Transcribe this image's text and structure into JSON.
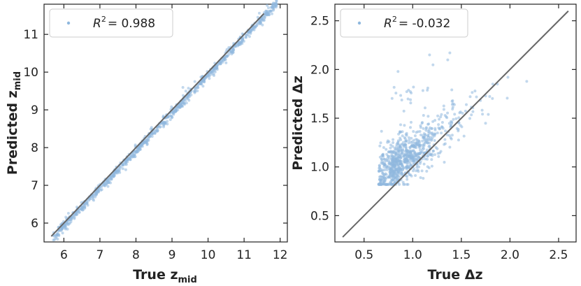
{
  "chart_data": [
    {
      "type": "scatter",
      "xlabel": {
        "main": "True z",
        "sub": "mid"
      },
      "ylabel": {
        "main": "Predicted z",
        "sub": "mid"
      },
      "xlim": [
        5.45,
        12.2
      ],
      "ylim": [
        5.5,
        11.8
      ],
      "xticks": [
        "6",
        "7",
        "8",
        "9",
        "10",
        "11",
        "12"
      ],
      "yticks": [
        "6",
        "7",
        "8",
        "9",
        "10",
        "11"
      ],
      "legend": {
        "r2_label": "R",
        "r2_sup": "2",
        "r2_value": "= 0.988",
        "placement": "top-left"
      },
      "reference_line": {
        "x": [
          5.65,
          11.55
        ],
        "y": [
          5.65,
          11.55
        ]
      },
      "series": [
        {
          "generator": {
            "n": 900,
            "x_range": [
              5.7,
              11.9
            ],
            "noise": 0.06,
            "seed": 11
          }
        }
      ]
    },
    {
      "type": "scatter",
      "xlabel": {
        "main": "True Δz",
        "sub": ""
      },
      "ylabel": {
        "main": "Predicted Δz",
        "sub": ""
      },
      "xlim": [
        0.2,
        2.68
      ],
      "ylim": [
        0.23,
        2.67
      ],
      "xticks": [
        "0.5",
        "1.0",
        "1.5",
        "2.0",
        "2.5"
      ],
      "yticks": [
        "0.5",
        "1.0",
        "1.5",
        "2.0",
        "2.5"
      ],
      "legend": {
        "r2_label": "R",
        "r2_sup": "2",
        "r2_value": "= -0.032",
        "placement": "top-left"
      },
      "reference_line": {
        "x": [
          0.28,
          2.6
        ],
        "y": [
          0.28,
          2.6
        ]
      },
      "series": [
        {
          "generator": {
            "n": 850,
            "center": [
              0.95,
              1.08
            ],
            "seed": 29
          }
        }
      ]
    }
  ],
  "colors": {
    "points": "#8fb8de",
    "line": "#666666",
    "axis": "#222222"
  }
}
